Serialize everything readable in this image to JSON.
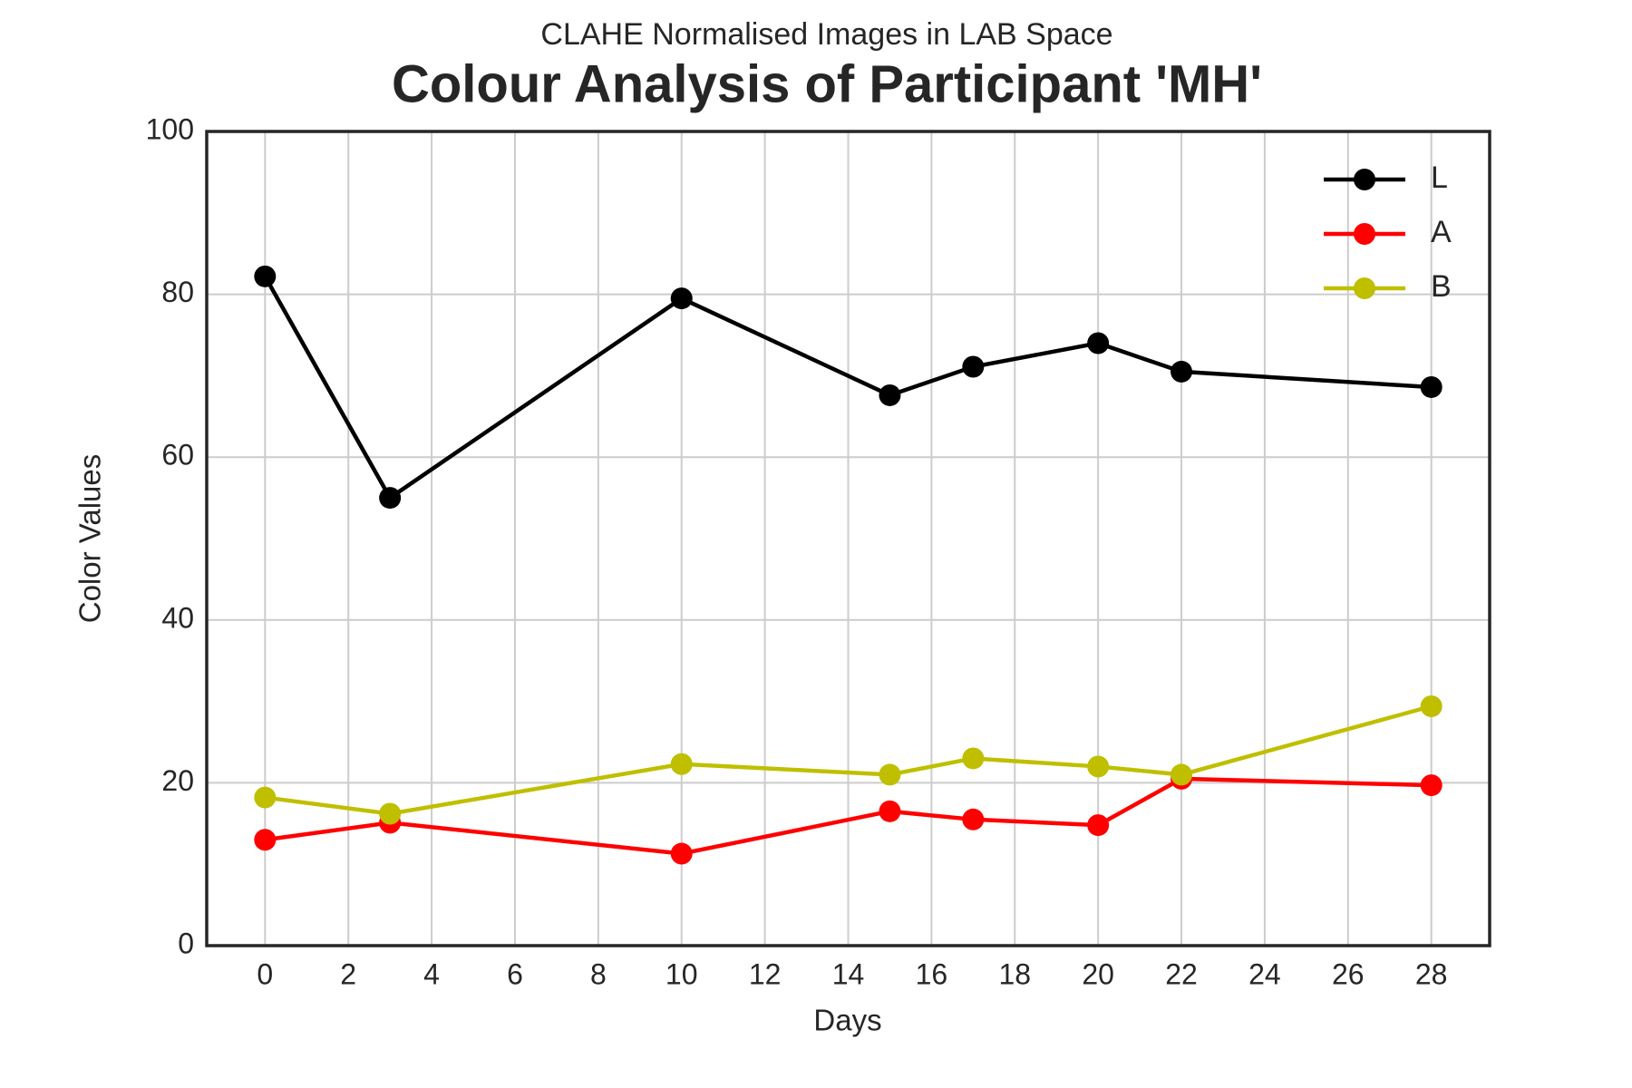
{
  "chart_data": {
    "type": "line",
    "subtitle": "CLAHE Normalised Images in LAB Space",
    "title": "Colour Analysis of Participant 'MH'",
    "x_label": "Days",
    "y_label": "Color Values",
    "x": [
      0,
      3,
      10,
      15,
      17,
      20,
      22,
      28
    ],
    "series": [
      {
        "name": "L",
        "color": "#000000",
        "values": [
          82.2,
          55.0,
          79.5,
          67.6,
          71.1,
          74.0,
          70.5,
          68.6
        ]
      },
      {
        "name": "A",
        "color": "#ff0000",
        "values": [
          13.0,
          15.1,
          11.3,
          16.5,
          15.5,
          14.8,
          20.5,
          19.7
        ]
      },
      {
        "name": "B",
        "color": "#bfbf00",
        "values": [
          18.2,
          16.2,
          22.3,
          21.0,
          23.0,
          22.0,
          21.0,
          29.4
        ]
      }
    ],
    "xlim": [
      -1.4,
      29.4
    ],
    "xticks": [
      0,
      2,
      4,
      6,
      8,
      10,
      12,
      14,
      16,
      18,
      20,
      22,
      24,
      26,
      28
    ],
    "ylim": [
      0,
      100
    ],
    "yticks": [
      0,
      20,
      40,
      60,
      80,
      100
    ],
    "grid": true,
    "legend": "upper right"
  }
}
